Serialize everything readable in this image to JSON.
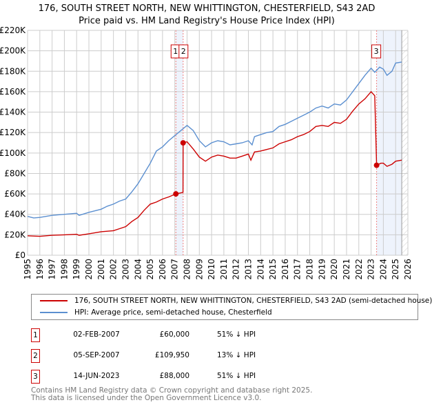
{
  "title_line1": "176, SOUTH STREET NORTH, NEW WHITTINGTON, CHESTERFIELD, S43 2AD",
  "title_line2": "Price paid vs. HM Land Registry's House Price Index (HPI)",
  "legend": [
    {
      "label": "176, SOUTH STREET NORTH, NEW WHITTINGTON, CHESTERFIELD, S43 2AD (semi-detached house)",
      "color": "#cc0000"
    },
    {
      "label": "HPI: Average price, semi-detached house, Chesterfield",
      "color": "#5b8fd0"
    }
  ],
  "transactions": [
    {
      "num": "1",
      "date": "02-FEB-2007",
      "price": "£60,000",
      "hpi": "51% ↓ HPI"
    },
    {
      "num": "2",
      "date": "05-SEP-2007",
      "price": "£109,950",
      "hpi": "13% ↓ HPI"
    },
    {
      "num": "3",
      "date": "14-JUN-2023",
      "price": "£88,000",
      "hpi": "51% ↓ HPI"
    }
  ],
  "footer_line1": "Contains HM Land Registry data © Crown copyright and database right 2025.",
  "footer_line2": "This data is licensed under the Open Government Licence v3.0.",
  "chart_data": {
    "type": "line",
    "xlim": [
      1995,
      2026
    ],
    "ylim": [
      0,
      220000
    ],
    "yticks": [
      0,
      20000,
      40000,
      60000,
      80000,
      100000,
      120000,
      140000,
      160000,
      180000,
      200000,
      220000
    ],
    "ytick_labels": [
      "£0",
      "£20K",
      "£40K",
      "£60K",
      "£80K",
      "£100K",
      "£120K",
      "£140K",
      "£160K",
      "£180K",
      "£200K",
      "£220K"
    ],
    "xticks": [
      1995,
      1996,
      1997,
      1998,
      1999,
      2000,
      2001,
      2002,
      2003,
      2004,
      2005,
      2006,
      2007,
      2008,
      2009,
      2010,
      2011,
      2012,
      2013,
      2014,
      2015,
      2016,
      2017,
      2018,
      2019,
      2020,
      2021,
      2022,
      2023,
      2024,
      2025,
      2026
    ],
    "grid": true,
    "forecast_from": 2025.5,
    "shaded_ranges": [
      [
        2007.09,
        2007.68
      ],
      [
        2023.45,
        2025.5
      ]
    ],
    "series": [
      {
        "name": "HPI",
        "color": "#5b8fd0",
        "x": [
          1995,
          1995.5,
          1996,
          1997,
          1998,
          1999,
          1999.2,
          2000,
          2001,
          2001.5,
          2002,
          2002.5,
          2003,
          2003.5,
          2004,
          2004.5,
          2005,
          2005.5,
          2006,
          2006.5,
          2007,
          2007.5,
          2008,
          2008.5,
          2009,
          2009.5,
          2010,
          2010.5,
          2011,
          2011.5,
          2012,
          2012.5,
          2013,
          2013.3,
          2013.5,
          2014,
          2014.5,
          2015,
          2015.5,
          2016,
          2016.5,
          2017,
          2017.5,
          2018,
          2018.5,
          2019,
          2019.5,
          2020,
          2020.5,
          2021,
          2021.5,
          2022,
          2022.5,
          2023,
          2023.3,
          2023.7,
          2024,
          2024.3,
          2024.7,
          2025,
          2025.5
        ],
        "y": [
          38000,
          36500,
          37000,
          39000,
          40000,
          41000,
          39000,
          42000,
          45000,
          48000,
          50000,
          53000,
          55000,
          62000,
          70000,
          80000,
          90000,
          102000,
          106000,
          112000,
          117000,
          122000,
          127000,
          122000,
          112000,
          106000,
          110000,
          112000,
          111000,
          108000,
          109000,
          110000,
          112000,
          108000,
          116000,
          118000,
          120000,
          121000,
          126000,
          128000,
          131000,
          134000,
          137000,
          140000,
          144000,
          146000,
          144000,
          148000,
          147000,
          152000,
          160000,
          168000,
          176000,
          183000,
          179000,
          184000,
          182000,
          176000,
          180000,
          188000,
          189000
        ]
      },
      {
        "name": "Price paid",
        "color": "#cc0000",
        "x": [
          1995,
          1996,
          1997,
          1998,
          1999,
          1999.2,
          2000,
          2001,
          2002,
          2002.5,
          2003,
          2003.5,
          2004,
          2004.5,
          2005,
          2005.5,
          2006,
          2006.5,
          2007.09,
          2007.5,
          2007.67,
          2007.68,
          2008,
          2008.5,
          2009,
          2009.5,
          2010,
          2010.5,
          2011,
          2011.5,
          2012,
          2012.5,
          2013,
          2013.2,
          2013.5,
          2014,
          2015,
          2015.5,
          2016,
          2016.5,
          2017,
          2017.5,
          2018,
          2018.5,
          2019,
          2019.5,
          2020,
          2020.5,
          2021,
          2021.5,
          2022,
          2022.5,
          2023,
          2023.3,
          2023.45,
          2023.8,
          2024,
          2024.3,
          2024.7,
          2025,
          2025.5
        ],
        "y": [
          19000,
          18500,
          19500,
          20000,
          20500,
          19500,
          21000,
          23000,
          24000,
          26000,
          28000,
          33000,
          37000,
          44000,
          50000,
          52000,
          55000,
          57000,
          60000,
          61000,
          61500,
          109950,
          111000,
          104000,
          96000,
          92000,
          96000,
          98000,
          97000,
          95000,
          95000,
          97000,
          99000,
          93000,
          101000,
          102000,
          105000,
          109000,
          111000,
          113000,
          116000,
          118000,
          121000,
          126000,
          127000,
          126000,
          130000,
          129000,
          133000,
          141000,
          148000,
          153000,
          160000,
          156000,
          88000,
          90000,
          90000,
          87000,
          89000,
          92000,
          93000
        ]
      }
    ],
    "sales": [
      {
        "label": "1",
        "x": 2007.09,
        "y": 60000
      },
      {
        "label": "2",
        "x": 2007.68,
        "y": 109950
      },
      {
        "label": "3",
        "x": 2023.45,
        "y": 88000
      }
    ]
  }
}
